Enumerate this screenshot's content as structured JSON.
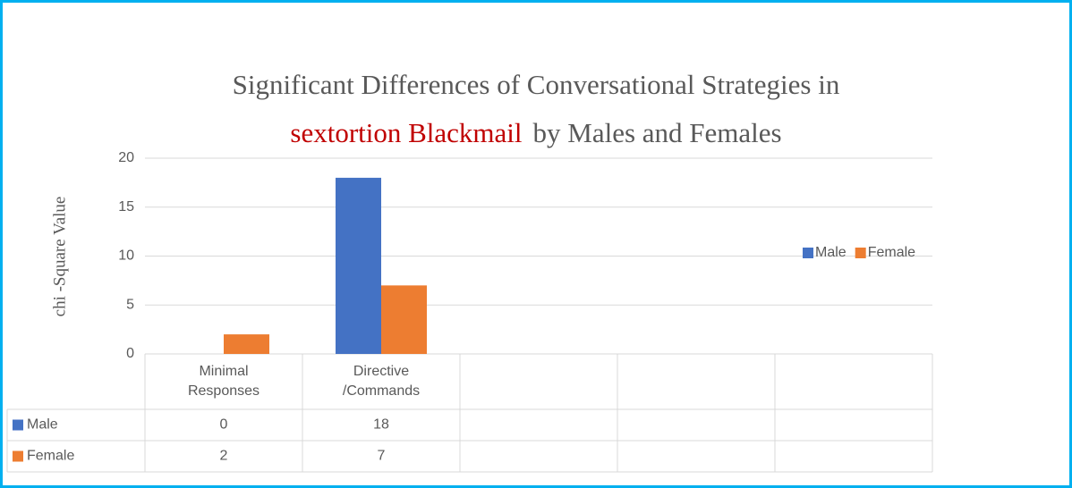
{
  "chart_data": {
    "type": "bar",
    "title": "Significant Differences of Conversational Strategies in",
    "title_highlight": "sextortion Blackmail",
    "title_rest": "by Males and Females",
    "title_highlight_color": "#c00000",
    "ylabel": "chi -Square Value",
    "categories": [
      "Minimal Responses",
      "Directive /Commands",
      null,
      null,
      null
    ],
    "series": [
      {
        "name": "Male",
        "color": "#4472c4",
        "values": [
          0,
          18,
          null,
          null,
          null
        ]
      },
      {
        "name": "Female",
        "color": "#ed7d31",
        "values": [
          2,
          7,
          null,
          null,
          null
        ]
      }
    ],
    "ylim": [
      0,
      20
    ],
    "yticks": [
      0,
      5,
      10,
      15,
      20
    ],
    "grid": true,
    "legend": "right",
    "data_table": true
  }
}
